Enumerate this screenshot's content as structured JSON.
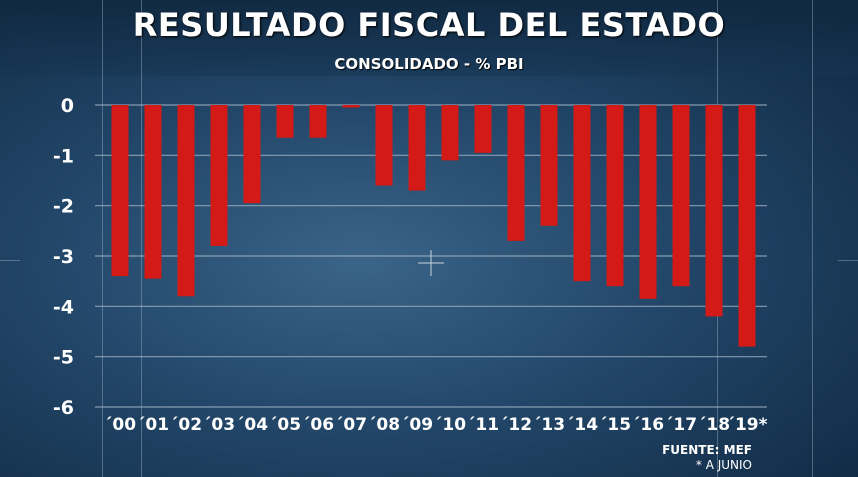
{
  "title": "RESULTADO FISCAL DEL ESTADO",
  "subtitle": "CONSOLIDADO - % PBI",
  "source": {
    "label": "FUENTE: MEF",
    "note": "* A JUNIO"
  },
  "colors": {
    "bar": "#d41a16",
    "gridline": "#9fb2c4",
    "text": "#ffffff"
  },
  "chart_data": {
    "type": "bar",
    "title": "RESULTADO FISCAL DEL ESTADO",
    "subtitle": "CONSOLIDADO - % PBI",
    "categories": [
      "´00",
      "´01",
      "´02",
      "´03",
      "´04",
      "´05",
      "´06",
      "´07",
      "´08",
      "´09",
      "´10",
      "´11",
      "´12",
      "´13",
      "´14",
      "´15",
      "´16",
      "´17",
      "´18",
      "´19*"
    ],
    "values": [
      -3.4,
      -3.45,
      -3.8,
      -2.8,
      -1.95,
      -0.65,
      -0.65,
      -0.05,
      -1.6,
      -1.7,
      -1.1,
      -0.95,
      -2.7,
      -2.4,
      -3.5,
      -3.6,
      -3.85,
      -3.6,
      -4.2,
      -4.8
    ],
    "yticks": [
      0,
      -1,
      -2,
      -3,
      -4,
      -5,
      -6
    ],
    "ylim": [
      -6,
      0
    ],
    "grid": true,
    "legend": "none",
    "xlabel": "",
    "ylabel": ""
  }
}
